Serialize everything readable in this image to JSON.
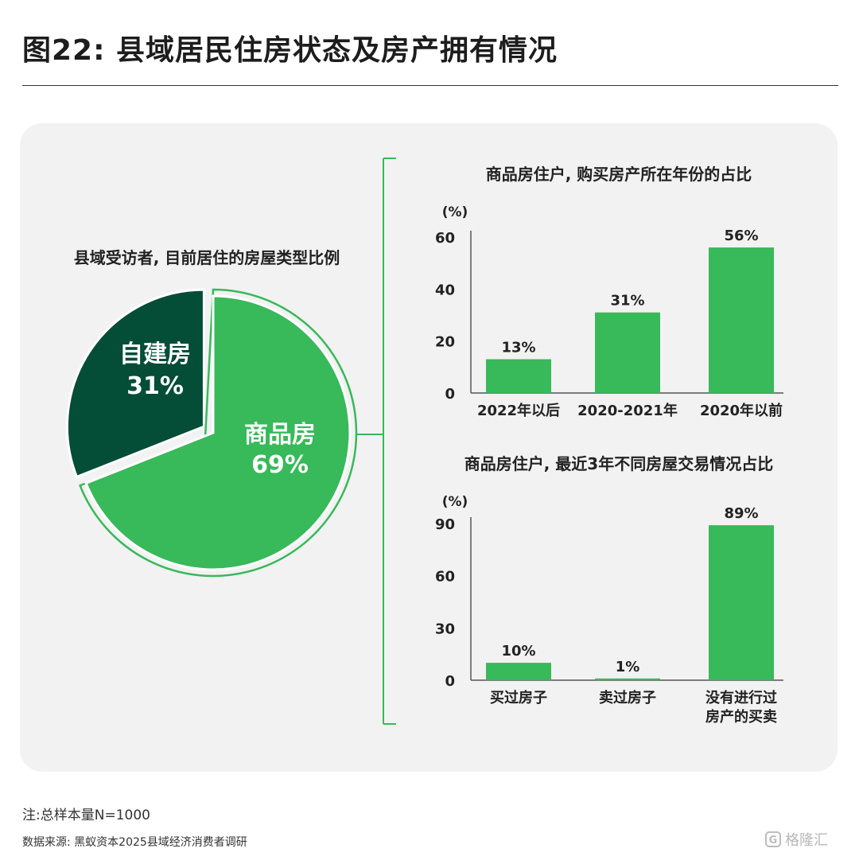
{
  "title": "图22: 县域居民住房状态及房产拥有情况",
  "note": "注:总样本量N=1000",
  "source": "数据来源: 黑蚁资本2025县域经济消费者调研",
  "watermark": "格隆汇",
  "colors": {
    "dark_green": "#044d36",
    "green": "#38b95a",
    "bracket": "#38b95a",
    "panel_bg": "#f2f2f2"
  },
  "chart_data": [
    {
      "type": "pie",
      "title": "县域受访者, 目前居住的房屋类型比例",
      "slices": [
        {
          "name": "自建房",
          "value": 31,
          "label": "31%",
          "color": "#044d36"
        },
        {
          "name": "商品房",
          "value": 69,
          "label": "69%",
          "color": "#38b95a"
        }
      ]
    },
    {
      "type": "bar",
      "title": "商品房住户, 购买房产所在年份的占比",
      "unit": "(%)",
      "categories": [
        "2022年以后",
        "2020-2021年",
        "2020年以前"
      ],
      "values": [
        13,
        31,
        56
      ],
      "labels": [
        "13%",
        "31%",
        "56%"
      ],
      "ylim": [
        0,
        60
      ],
      "yticks": [
        "0",
        "20",
        "40",
        "60"
      ],
      "ytick_values": [
        0,
        20,
        40,
        60
      ],
      "grid": false
    },
    {
      "type": "bar",
      "title": "商品房住户, 最近3年不同房屋交易情况占比",
      "unit": "(%)",
      "categories": [
        "买过房子",
        "卖过房子",
        "没有进行过房产的买卖"
      ],
      "category_lines": [
        [
          "买过房子"
        ],
        [
          "卖过房子"
        ],
        [
          "没有进行过",
          "房产的买卖"
        ]
      ],
      "values": [
        10,
        1,
        89
      ],
      "labels": [
        "10%",
        "1%",
        "89%"
      ],
      "ylim": [
        0,
        90
      ],
      "yticks": [
        "0",
        "30",
        "60",
        "90"
      ],
      "ytick_values": [
        0,
        30,
        60,
        90
      ],
      "grid": false
    }
  ]
}
